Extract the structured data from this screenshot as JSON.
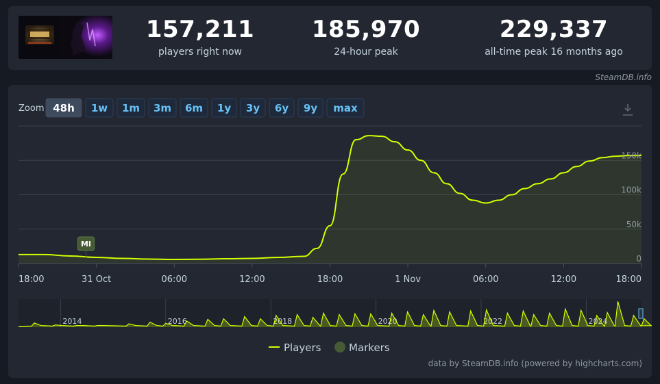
{
  "stats": [
    {
      "value": "157,211",
      "label": "players right now"
    },
    {
      "value": "185,970",
      "label": "24-hour peak"
    },
    {
      "value": "229,337",
      "label": "all-time peak 16 months ago"
    }
  ],
  "site_credit": "SteamDB.info",
  "footer_credit": "data by SteamDB.info (powered by highcharts.com)",
  "zoom": {
    "label": "Zoom",
    "buttons": [
      "48h",
      "1w",
      "1m",
      "3m",
      "6m",
      "1y",
      "3y",
      "6y",
      "9y",
      "max"
    ],
    "active": "48h"
  },
  "colors": {
    "players": "#d4ff00",
    "markers": "#475a36",
    "background": "#222731",
    "accent": "#67c1f5"
  },
  "icons": {
    "download": "download-icon"
  },
  "chart_data": {
    "type": "line",
    "series": [
      {
        "name": "Players"
      }
    ],
    "x_labels": [
      "18:00",
      "31 Oct",
      "06:00",
      "12:00",
      "18:00",
      "1 Nov",
      "06:00",
      "12:00",
      "18:00"
    ],
    "x_hours": [
      0,
      6,
      12,
      18,
      24,
      30,
      36,
      42,
      48
    ],
    "y_ticks": [
      0,
      50000,
      100000,
      150000
    ],
    "y_tick_labels": [
      "0",
      "50k",
      "100k",
      "150k"
    ],
    "ylim": [
      0,
      200000
    ],
    "points": [
      [
        0,
        13000
      ],
      [
        2,
        13000
      ],
      [
        4,
        11000
      ],
      [
        6,
        9000
      ],
      [
        8,
        7500
      ],
      [
        10,
        6500
      ],
      [
        12,
        6000
      ],
      [
        14,
        6200
      ],
      [
        16,
        7000
      ],
      [
        18,
        7500
      ],
      [
        20,
        9000
      ],
      [
        22,
        10500
      ],
      [
        23,
        22000
      ],
      [
        24,
        55000
      ],
      [
        25,
        130000
      ],
      [
        26,
        180000
      ],
      [
        27,
        185970
      ],
      [
        28,
        185000
      ],
      [
        29,
        177000
      ],
      [
        30,
        165000
      ],
      [
        31,
        150000
      ],
      [
        32,
        132000
      ],
      [
        33,
        116000
      ],
      [
        34,
        102000
      ],
      [
        35,
        92000
      ],
      [
        36,
        88000
      ],
      [
        37,
        92000
      ],
      [
        38,
        100000
      ],
      [
        39,
        109000
      ],
      [
        40,
        116000
      ],
      [
        41,
        123000
      ],
      [
        42,
        132000
      ],
      [
        43,
        141000
      ],
      [
        44,
        149000
      ],
      [
        45,
        154000
      ],
      [
        46,
        156000
      ],
      [
        47,
        157000
      ],
      [
        48,
        157211
      ]
    ],
    "markers": [
      {
        "label": "MI",
        "x": 5.2
      }
    ],
    "navigator": {
      "year_labels": [
        "2014",
        "2016",
        "2018",
        "2020",
        "2022",
        "2024"
      ],
      "start_year": 2013.2,
      "end_year": 2025.05,
      "peaks": [
        [
          2013.5,
          0.15
        ],
        [
          2013.9,
          0.08
        ],
        [
          2014.3,
          0.06
        ],
        [
          2014.7,
          0.06
        ],
        [
          2015.3,
          0.12
        ],
        [
          2015.7,
          0.18
        ],
        [
          2016.0,
          0.14
        ],
        [
          2016.4,
          0.22
        ],
        [
          2016.8,
          0.28
        ],
        [
          2017.1,
          0.3
        ],
        [
          2017.5,
          0.38
        ],
        [
          2017.8,
          0.3
        ],
        [
          2018.1,
          0.42
        ],
        [
          2018.5,
          0.45
        ],
        [
          2018.8,
          0.35
        ],
        [
          2019.0,
          0.5
        ],
        [
          2019.3,
          0.45
        ],
        [
          2019.6,
          0.48
        ],
        [
          2019.9,
          0.48
        ],
        [
          2020.3,
          0.5
        ],
        [
          2020.6,
          0.55
        ],
        [
          2020.9,
          0.45
        ],
        [
          2021.1,
          0.6
        ],
        [
          2021.4,
          0.55
        ],
        [
          2021.8,
          0.58
        ],
        [
          2022.1,
          0.62
        ],
        [
          2022.5,
          0.5
        ],
        [
          2022.8,
          0.58
        ],
        [
          2023.0,
          0.45
        ],
        [
          2023.3,
          0.5
        ],
        [
          2023.6,
          0.65
        ],
        [
          2023.9,
          0.6
        ],
        [
          2024.2,
          0.42
        ],
        [
          2024.4,
          0.52
        ],
        [
          2024.6,
          0.92
        ],
        [
          2024.9,
          0.42
        ],
        [
          2025.1,
          0.3
        ],
        [
          2025.35,
          0.62
        ]
      ]
    },
    "legend": [
      {
        "name": "Players"
      },
      {
        "name": "Markers"
      }
    ]
  }
}
